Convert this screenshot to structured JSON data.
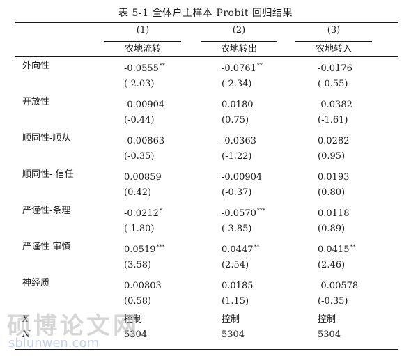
{
  "caption": "表 5-1   全体户主样本 Probit 回归结果",
  "columns": [
    {
      "num": "(1)",
      "name": "农地流转"
    },
    {
      "num": "(2)",
      "name": "农地转出"
    },
    {
      "num": "(3)",
      "name": "农地转入"
    }
  ],
  "rows": [
    {
      "label": "外向性",
      "coef": [
        {
          "v": "-0.0555",
          "s": "**"
        },
        {
          "v": "-0.0761",
          "s": "**"
        },
        {
          "v": "-0.0176",
          "s": ""
        }
      ],
      "t": [
        "(-2.03)",
        "(-2.34)",
        "(-0.55)"
      ]
    },
    {
      "label": "开放性",
      "coef": [
        {
          "v": "-0.00904",
          "s": ""
        },
        {
          "v": "0.0180",
          "s": ""
        },
        {
          "v": "-0.0382",
          "s": ""
        }
      ],
      "t": [
        "(-0.44)",
        "(0.75)",
        "(-1.61)"
      ]
    },
    {
      "label": "顺同性-顺从",
      "coef": [
        {
          "v": "-0.00863",
          "s": ""
        },
        {
          "v": "-0.0363",
          "s": ""
        },
        {
          "v": "0.0282",
          "s": ""
        }
      ],
      "t": [
        "(-0.35)",
        "(-1.22)",
        "(0.95)"
      ]
    },
    {
      "label": "顺同性- 信任",
      "coef": [
        {
          "v": "0.00859",
          "s": ""
        },
        {
          "v": "-0.00904",
          "s": ""
        },
        {
          "v": "0.0193",
          "s": ""
        }
      ],
      "t": [
        "(0.42)",
        "(-0.37)",
        "(0.80)"
      ]
    },
    {
      "label": "严谨性-条理",
      "coef": [
        {
          "v": "-0.0212",
          "s": "*"
        },
        {
          "v": "-0.0570",
          "s": "***"
        },
        {
          "v": "0.0118",
          "s": ""
        }
      ],
      "t": [
        "(-1.80)",
        "(-3.85)",
        "(0.89)"
      ]
    },
    {
      "label": "严谨性-审慎",
      "coef": [
        {
          "v": "0.0519",
          "s": "***"
        },
        {
          "v": "0.0447",
          "s": "**"
        },
        {
          "v": "0.0415",
          "s": "**"
        }
      ],
      "t": [
        "(3.58)",
        "(2.54)",
        "(2.46)"
      ]
    },
    {
      "label": "神经质",
      "coef": [
        {
          "v": "0.00803",
          "s": ""
        },
        {
          "v": "0.0185",
          "s": ""
        },
        {
          "v": "-0.00578",
          "s": ""
        }
      ],
      "t": [
        "(0.58)",
        "(1.15)",
        "(-0.35)"
      ]
    }
  ],
  "controls": {
    "label": "X",
    "values": [
      "控制",
      "控制",
      "控制"
    ]
  },
  "n_row": {
    "label": "N",
    "values": [
      "5304",
      "5304",
      "5304"
    ]
  },
  "watermark": {
    "text": "硕博论文网",
    "url": "sblunwen.com"
  }
}
